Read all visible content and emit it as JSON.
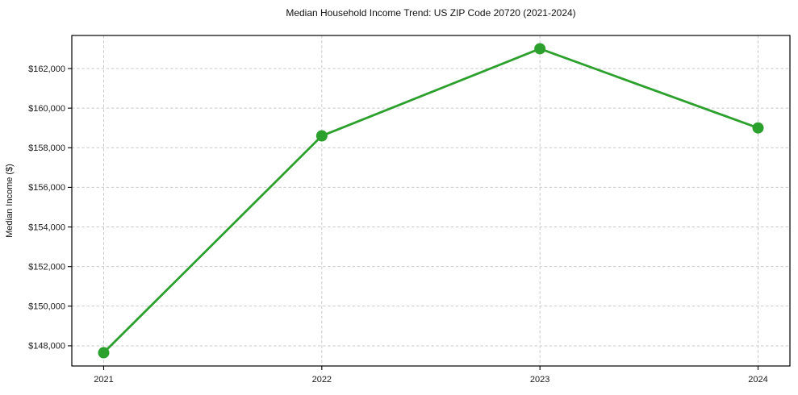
{
  "chart_data": {
    "type": "line",
    "title": "Median Household Income Trend: US ZIP Code 20720 (2021-2024)",
    "ylabel": "Median Income ($)",
    "xlabel": "",
    "x": [
      2021,
      2022,
      2023,
      2024
    ],
    "x_tick_labels": [
      "2021",
      "2022",
      "2023",
      "2024"
    ],
    "series": [
      {
        "name": "Median Household Income",
        "values": [
          147650,
          158600,
          163000,
          159000
        ]
      }
    ],
    "y_ticks": [
      148000,
      150000,
      152000,
      154000,
      156000,
      158000,
      160000,
      162000
    ],
    "y_tick_labels": [
      "$148,000",
      "$150,000",
      "$152,000",
      "$154,000",
      "$156,000",
      "$158,000",
      "$160,000",
      "$162,000"
    ],
    "ylim": [
      146980,
      163670
    ],
    "grid": true,
    "grid_style": "dashed",
    "legend": "none",
    "line_color": "#2ca02c",
    "marker": "circle"
  }
}
